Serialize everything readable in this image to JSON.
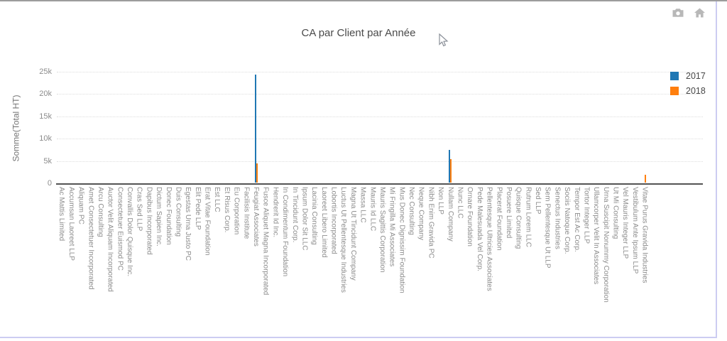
{
  "window": {
    "border_top_color": "#9c9c9c",
    "border_accent_color": "#ccccf2",
    "background": "#ffffff"
  },
  "modebar": {
    "icons": [
      "camera-icon",
      "home-icon"
    ],
    "icon_color": "#b8b8b8"
  },
  "chart_data": {
    "type": "bar",
    "title": "CA par Client par Année",
    "xlabel": "",
    "ylabel": "Somme(Total HT)",
    "ylim": [
      0,
      25000
    ],
    "ytick_values": [
      0,
      5000,
      10000,
      15000,
      20000,
      25000
    ],
    "ytick_labels": [
      "0",
      "5k",
      "10k",
      "15k",
      "20k",
      "25k"
    ],
    "grid": "horizontal-dotted",
    "legend_position": "top-right",
    "categories": [
      "Ac Mattis Limited",
      "Accumsan Laoreet LLP",
      "Aliquam PC",
      "Amet Consectetuer Incorporated",
      "Arcu Consulting",
      "Auctor Velit Aliquam Incorporated",
      "Consectetuer Euismod PC",
      "Convallis Dolor Quisque Inc.",
      "Cras Sed LLP",
      "Dapibus Incorporated",
      "Dictum Sapien Inc.",
      "Donec Foundation",
      "Duis Consulting",
      "Egestas Urna Justo PC",
      "Elit Pede LLP",
      "Erat Vitae Foundation",
      "Est LLC",
      "Et Risus Corp.",
      "Eu Corporation",
      "Facilisis Institute",
      "Feugiat Associates",
      "Fusce Aliquet Magna Incorporated",
      "Hendrerit Id Inc.",
      "In Condimentum Foundation",
      "In Tincidunt Corp.",
      "Ipsum Dolor Sit LLC",
      "Lacinia Consulting",
      "Laoreet Libero Limited",
      "Lobortis Incorporated",
      "Luctus Ut Pellentesque Industries",
      "Magna Ut Tincidunt Company",
      "Massa LLC",
      "Mauris Id LLC",
      "Mauris Sagittis Corporation",
      "Mi Fringilla Mi Associates",
      "Mus Donec Dignissim Foundation",
      "Nec Consulting",
      "Neque Company",
      "Nibh Enim Gravida PC",
      "Non LLP",
      "Nullam Company",
      "Nunc LLC",
      "Ornare Foundation",
      "Pede Malesuada Vel Corp.",
      "Pellentesque Ultricies Associates",
      "Placerat Foundation",
      "Posuere Limited",
      "Quisque Consulting",
      "Rutrum Lorem LLC",
      "Sed LLP",
      "Sem Pellentesque Ut LLP",
      "Senectus Industries",
      "Sociis Natoque Corp.",
      "Tempor Est Ac Corp.",
      "Tortor Integer LLP",
      "Ullamcorper Velit In Associates",
      "Urna Suscipit Nonummy Corporation",
      "Ut Mi Consulting",
      "Vel Mauris Integer LLP",
      "Vestibulum Ante Ipsum LLP",
      "Vitae Purus Gravida Industries"
    ],
    "series": [
      {
        "name": "2017",
        "color": "#1f77b4",
        "values": [
          0,
          0,
          0,
          0,
          0,
          0,
          0,
          0,
          0,
          0,
          0,
          0,
          0,
          0,
          0,
          0,
          0,
          0,
          0,
          0,
          24300,
          0,
          0,
          0,
          0,
          0,
          0,
          0,
          0,
          0,
          0,
          0,
          0,
          0,
          0,
          0,
          0,
          0,
          0,
          0,
          7400,
          0,
          0,
          0,
          0,
          0,
          0,
          0,
          0,
          0,
          0,
          0,
          0,
          0,
          0,
          0,
          0,
          0,
          0,
          0,
          0
        ]
      },
      {
        "name": "2018",
        "color": "#ff7f0e",
        "values": [
          0,
          0,
          0,
          0,
          0,
          0,
          0,
          0,
          0,
          0,
          0,
          0,
          0,
          0,
          0,
          0,
          0,
          0,
          0,
          0,
          4300,
          0,
          0,
          0,
          0,
          0,
          0,
          0,
          0,
          0,
          0,
          0,
          0,
          0,
          0,
          0,
          0,
          0,
          0,
          0,
          5400,
          0,
          0,
          0,
          0,
          0,
          0,
          0,
          0,
          0,
          0,
          0,
          0,
          0,
          0,
          0,
          0,
          0,
          0,
          0,
          1850
        ]
      }
    ]
  }
}
